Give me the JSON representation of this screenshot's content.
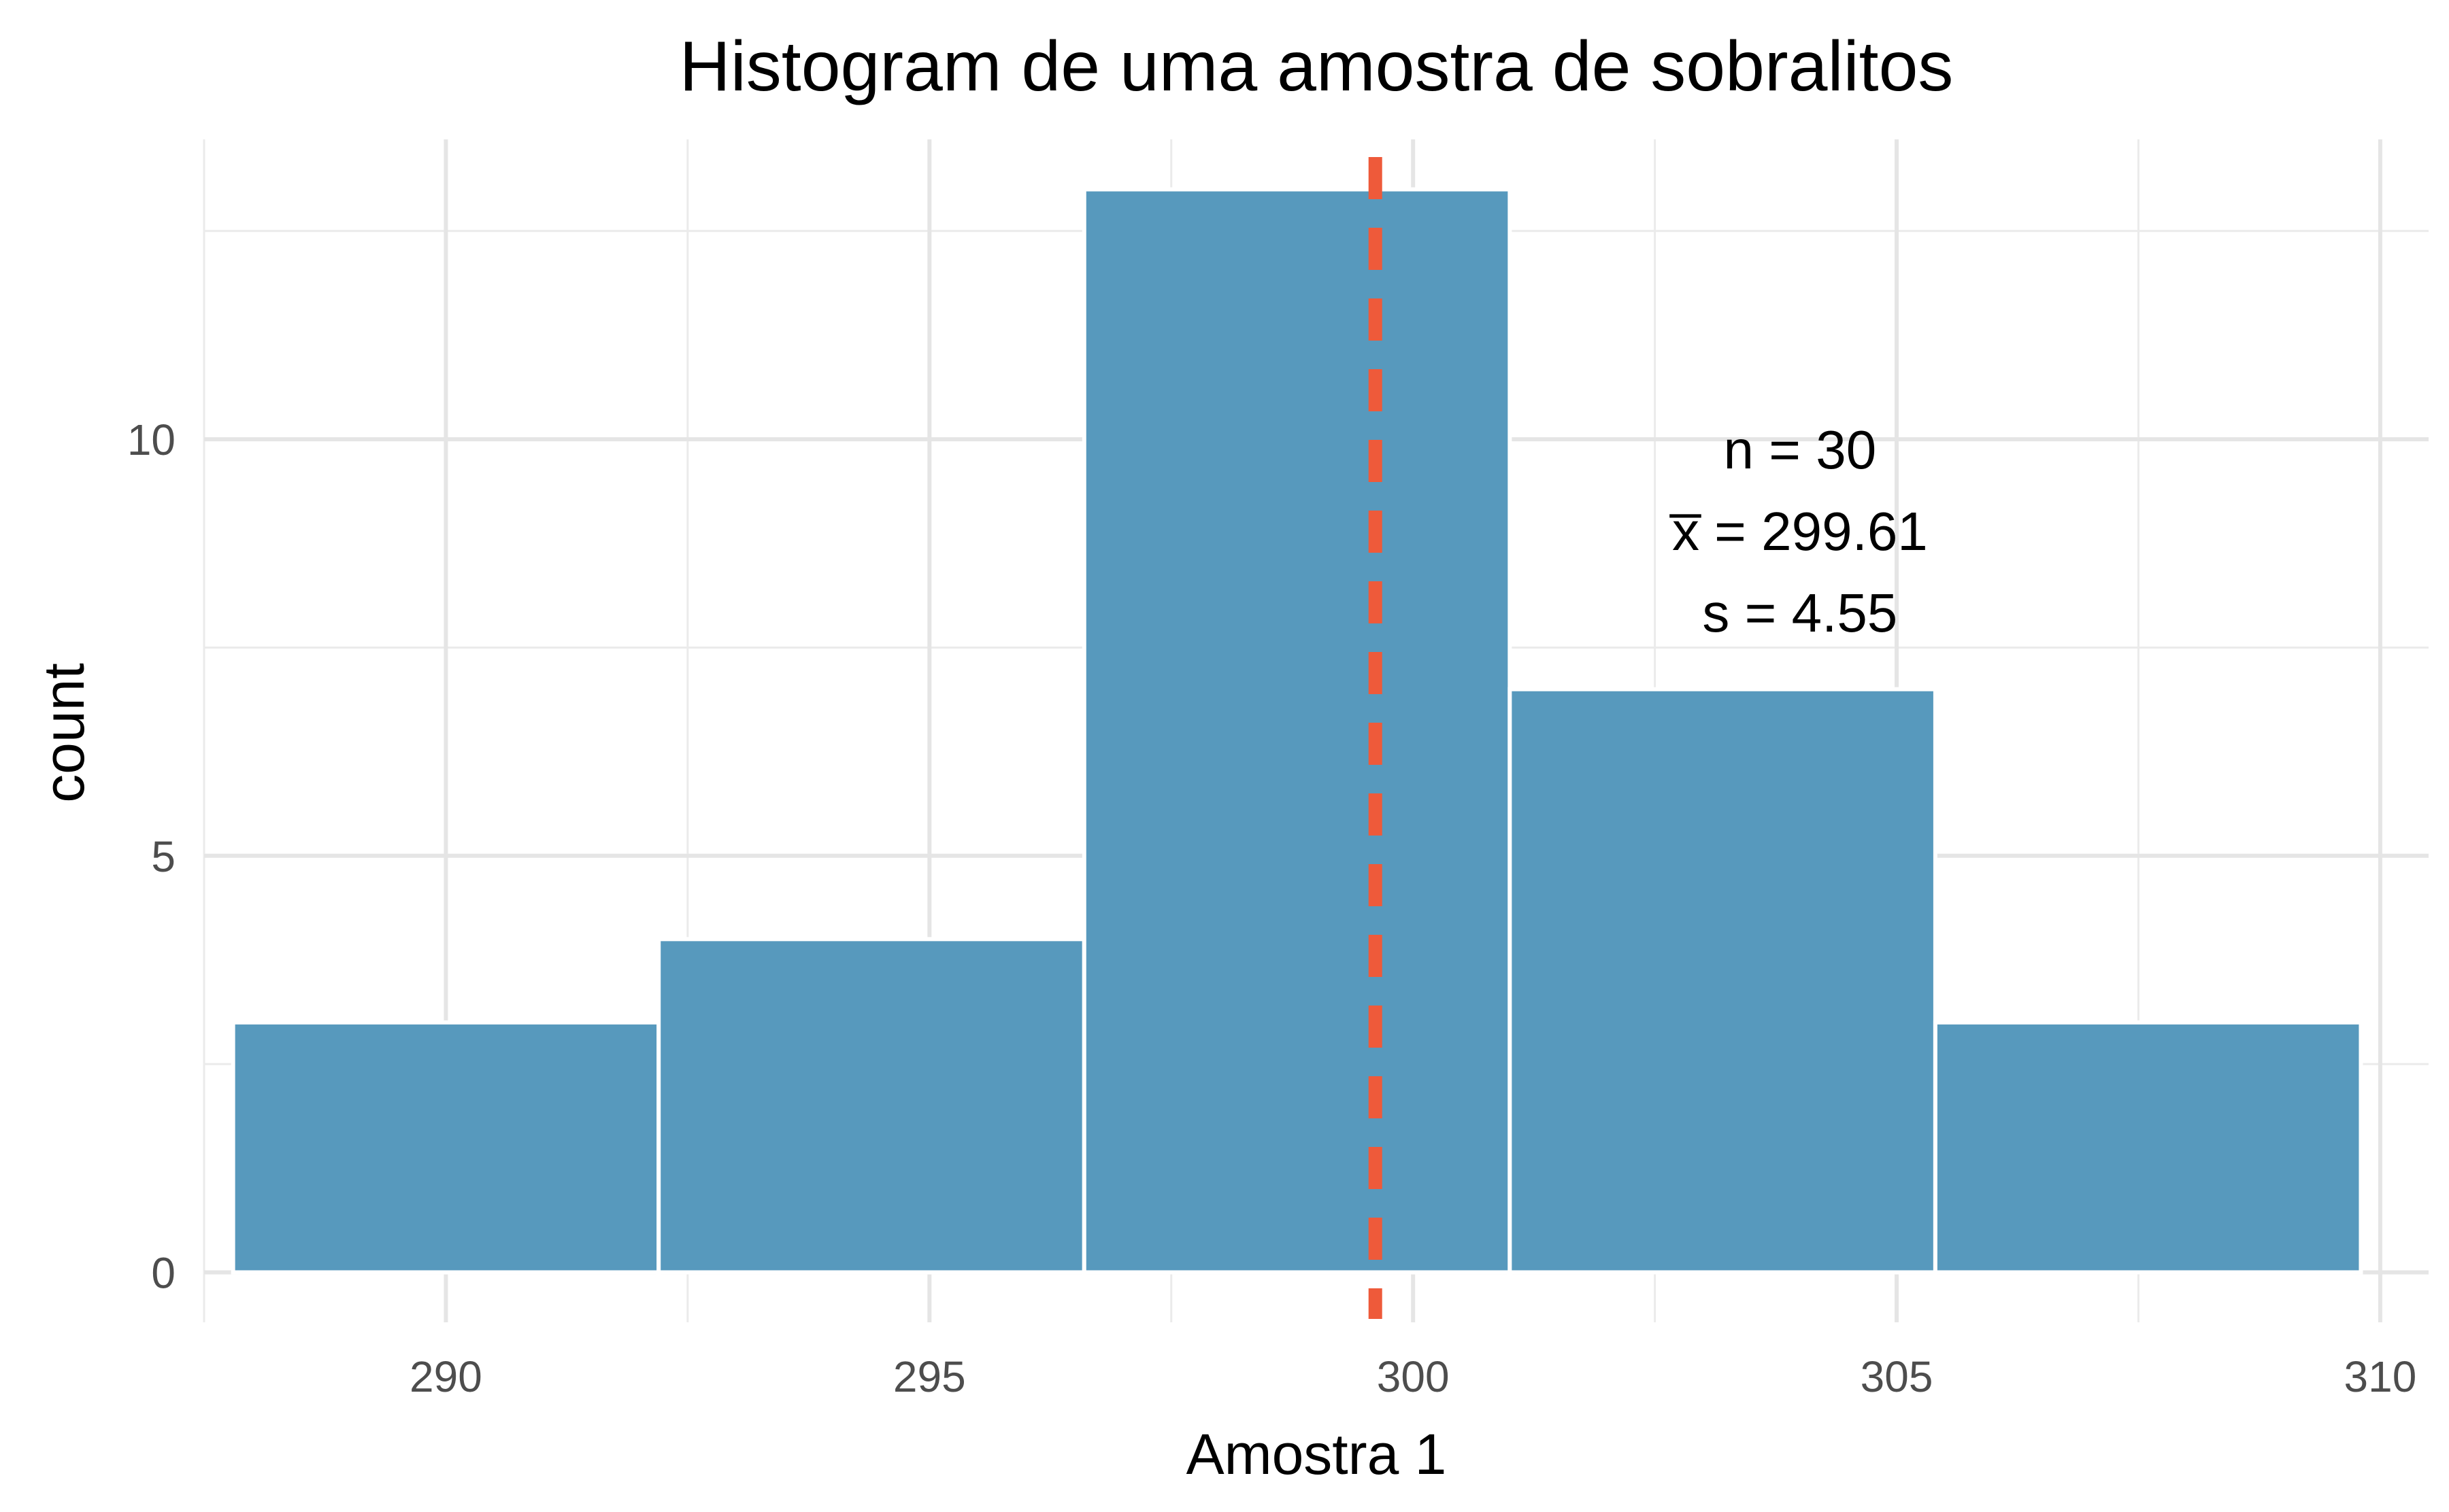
{
  "chart_data": {
    "type": "bar",
    "title": "Histogram de uma amostra de sobralitos",
    "xlabel": "Amostra 1",
    "ylabel": "count",
    "xlim": [
      287.5,
      310.5
    ],
    "ylim": [
      -0.6,
      13.6
    ],
    "x_ticks": [
      290,
      295,
      300,
      305,
      310
    ],
    "x_tick_labels": [
      "290",
      "295",
      "300",
      "305",
      "310"
    ],
    "y_ticks": [
      0,
      5,
      10
    ],
    "y_tick_labels": [
      "0",
      "5",
      "10"
    ],
    "bins": [
      {
        "x0": 287.8,
        "x1": 292.2,
        "count": 3
      },
      {
        "x0": 292.2,
        "x1": 296.6,
        "count": 4
      },
      {
        "x0": 296.6,
        "x1": 301.0,
        "count": 13
      },
      {
        "x0": 301.0,
        "x1": 305.4,
        "count": 7
      },
      {
        "x0": 305.4,
        "x1": 309.8,
        "count": 3
      }
    ],
    "bar_color": "#5799bd",
    "mean_line": {
      "x": 299.61,
      "color": "#ee5a3a",
      "style": "dashed"
    },
    "annotation": {
      "x": 304.0,
      "y": 8.9,
      "lines": [
        "n = 30",
        "x̅ = 299.61",
        "s = 4.55"
      ]
    },
    "grid": true,
    "legend": "none"
  }
}
